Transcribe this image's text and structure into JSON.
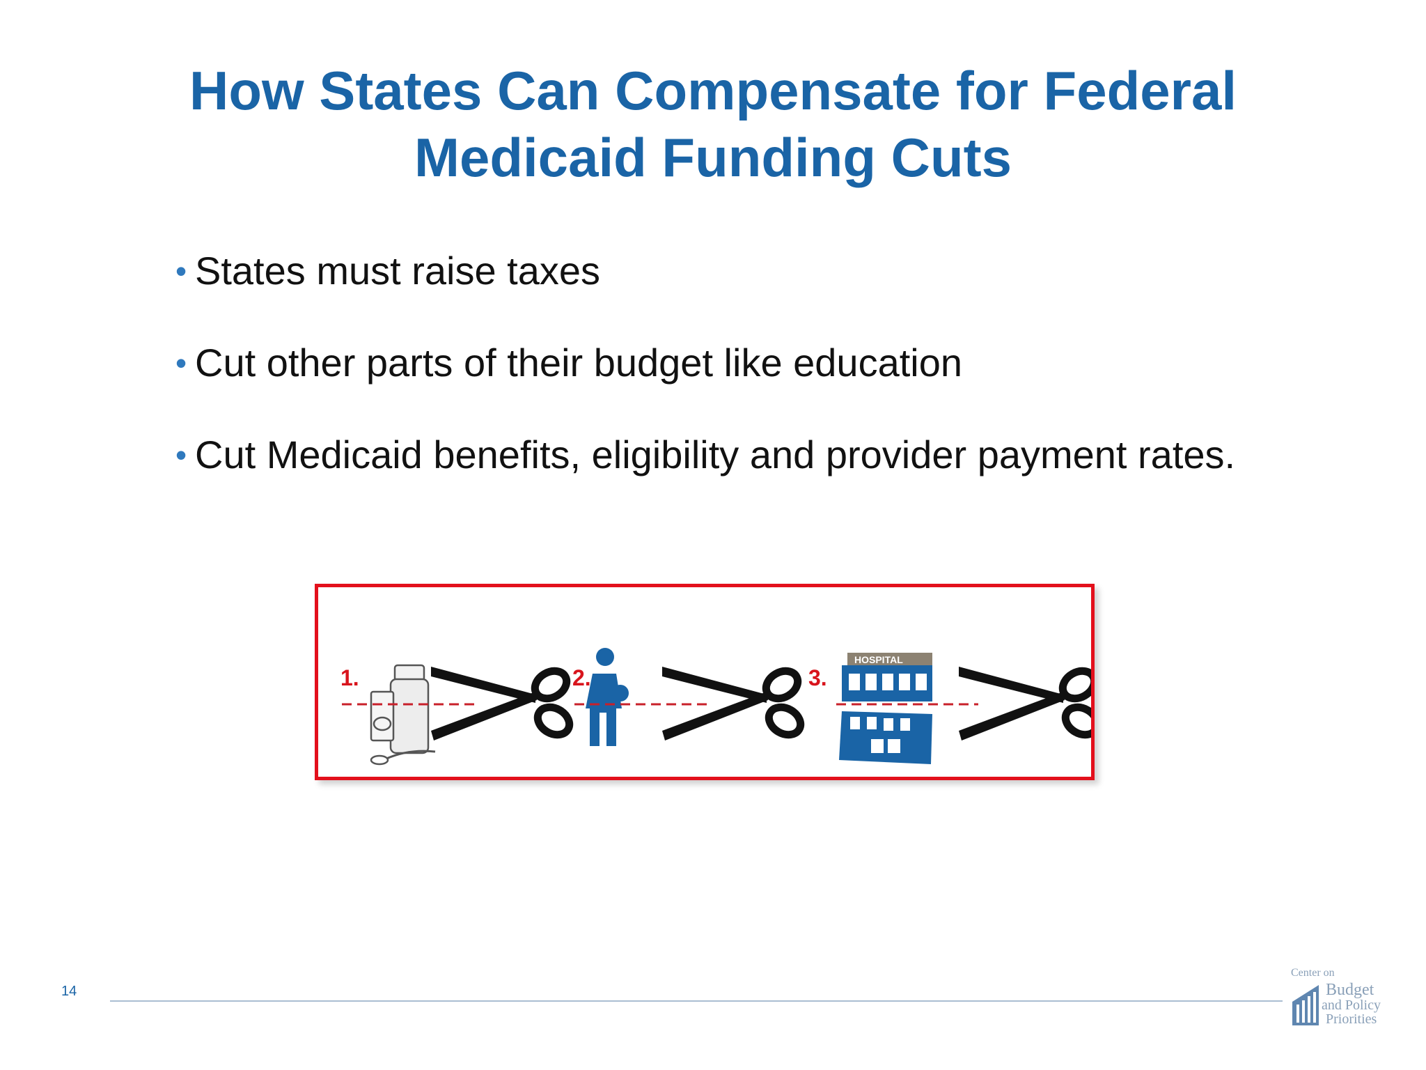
{
  "slide": {
    "title_line1": "How States Can Compensate for Federal",
    "title_line2": "Medicaid Funding Cuts",
    "bullets": [
      "States must raise taxes",
      "Cut other parts of their budget like education",
      "Cut Medicaid benefits, eligibility and provider payment rates."
    ],
    "bullet_symbol": "•",
    "page_number": "14"
  },
  "figure": {
    "items": [
      {
        "number": "1.",
        "icon": "medicine-bottle-icon"
      },
      {
        "number": "2.",
        "icon": "person-icon"
      },
      {
        "number": "3.",
        "icon": "hospital-icon",
        "sign": "HOSPITAL"
      }
    ],
    "cut_icon": "scissors-icon",
    "border_color": "#e3101c",
    "icon_color": "#1a64a6"
  },
  "logo": {
    "line1": "Center on",
    "line2": "Budget",
    "line3": "and Policy",
    "line4": "Priorities"
  },
  "colors": {
    "title": "#1a64a6",
    "bullet": "#2f79bd",
    "text": "#111111"
  }
}
